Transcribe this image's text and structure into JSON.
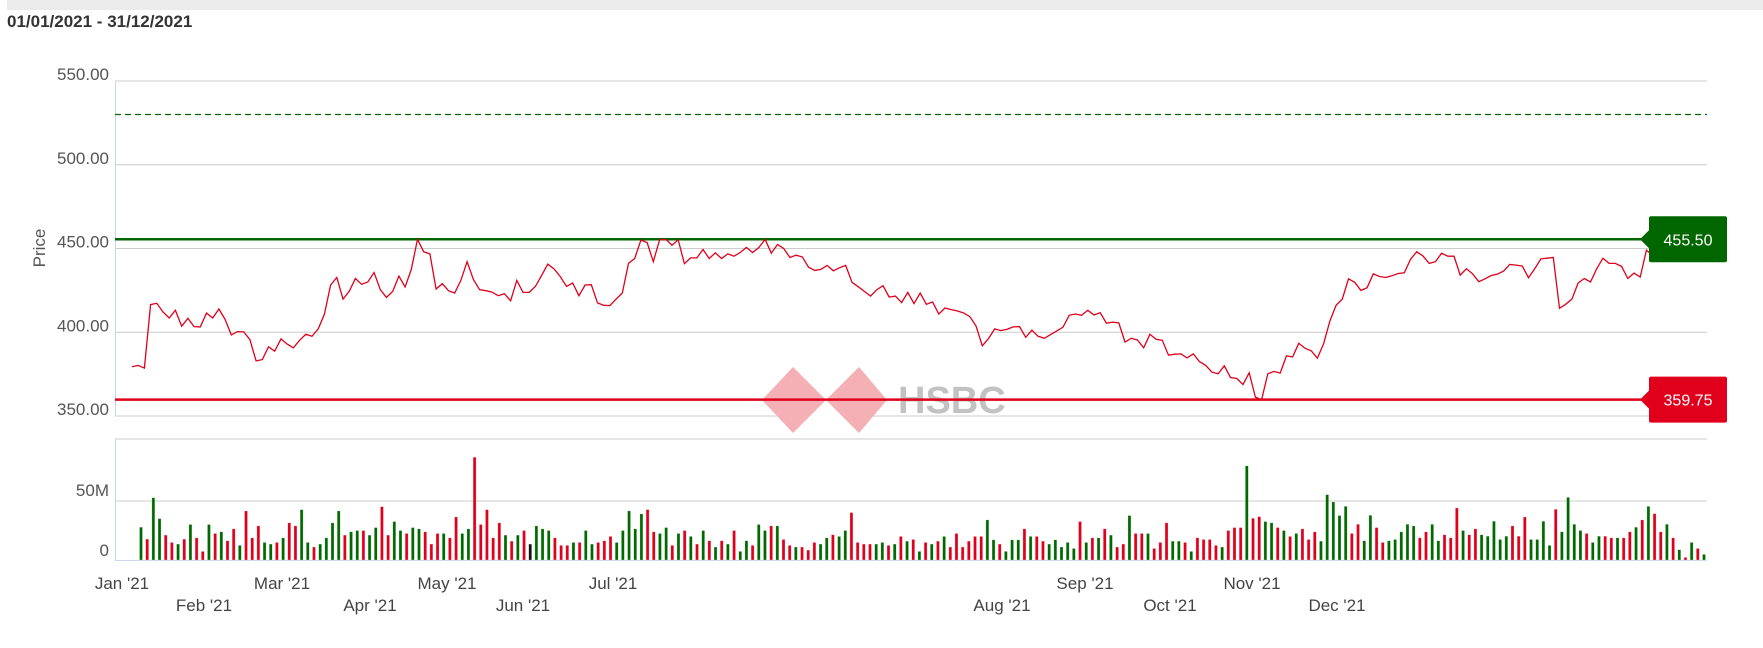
{
  "header": {
    "date_range": "01/01/2021 - 31/12/2021"
  },
  "watermark": {
    "text": "HSBC"
  },
  "colors": {
    "price_line": "#e0001b",
    "up": "#006a00",
    "down": "#e0001b",
    "flat": "#111111",
    "high_line": "#006600",
    "low_line": "#e0001b",
    "grid": "#cccccc"
  },
  "chart_data": {
    "type": "line",
    "title": "",
    "ylabel": "Price",
    "ylim": [
      350,
      550
    ],
    "y_ticks": [
      "550.00",
      "500.00",
      "450.00",
      "400.00",
      "350.00"
    ],
    "x_ticks": [
      "Jan '21",
      "Feb '21",
      "Mar '21",
      "Apr '21",
      "May '21",
      "Jun '21",
      "Jul '21",
      "Aug '21",
      "Sep '21",
      "Oct '21",
      "Nov '21",
      "Dec '21"
    ],
    "x_range": [
      "01/01/2021",
      "31/12/2021"
    ],
    "grid": true,
    "reference_lines": [
      {
        "label": "455.50",
        "value": 455.5,
        "style": "solid",
        "color": "#006600"
      },
      {
        "label": "359.75",
        "value": 359.75,
        "style": "solid",
        "color": "#e0001b"
      },
      {
        "value": 530,
        "style": "dashed",
        "color": "#006600"
      }
    ],
    "price": [
      379.4,
      380.2,
      378.6,
      416.5,
      417.3,
      412.1,
      408.5,
      413.1,
      403.6,
      408.3,
      403.4,
      403.2,
      411.5,
      408.5,
      413.9,
      407.7,
      398.4,
      400.4,
      400.2,
      395.6,
      382.9,
      383.7,
      391.3,
      388.7,
      396.0,
      392.9,
      390.7,
      395.2,
      398.8,
      397.6,
      402.0,
      410.7,
      428.2,
      432.7,
      419.8,
      424.4,
      432.1,
      428.6,
      430.0,
      435.7,
      425.4,
      420.8,
      424.4,
      433.5,
      427.0,
      437.5,
      455.5,
      448.0,
      446.8,
      425.8,
      429.0,
      424.8,
      423.4,
      431.0,
      442.1,
      431.5,
      425.4,
      424.8,
      424.0,
      421.8,
      423.0,
      418.8,
      431.0,
      423.8,
      423.8,
      427.4,
      433.9,
      440.7,
      437.9,
      433.3,
      427.4,
      429.4,
      421.8,
      428.2,
      428.4,
      417.5,
      416.1,
      415.9,
      419.8,
      423.4,
      441.1,
      444.0,
      455.0,
      453.6,
      442.1,
      455.2,
      455.5,
      452.0,
      455.2,
      440.9,
      444.4,
      444.4,
      449.4,
      444.0,
      447.4,
      444.0,
      446.8,
      445.4,
      447.6,
      450.6,
      447.6,
      450.6,
      455.5,
      447.2,
      452.4,
      450.0,
      444.6,
      446.0,
      445.0,
      438.9,
      436.9,
      437.5,
      439.9,
      436.7,
      438.5,
      439.9,
      429.8,
      427.2,
      424.4,
      421.6,
      425.4,
      427.8,
      421.0,
      421.6,
      417.7,
      423.8,
      417.1,
      423.4,
      416.7,
      418.1,
      410.9,
      414.5,
      413.5,
      412.7,
      411.5,
      409.3,
      403.6,
      391.9,
      396.2,
      402.0,
      401.0,
      401.8,
      403.2,
      403.4,
      397.0,
      401.2,
      397.6,
      396.4,
      398.6,
      400.8,
      403.0,
      410.1,
      410.9,
      410.1,
      413.1,
      410.3,
      411.7,
      405.4,
      406.0,
      405.6,
      394.2,
      396.4,
      395.4,
      390.7,
      398.8,
      395.8,
      395.2,
      386.3,
      386.9,
      387.1,
      384.7,
      387.1,
      382.5,
      380.2,
      376.2,
      375.2,
      380.0,
      373.0,
      372.4,
      368.8,
      375.8,
      361.3,
      359.75,
      375.2,
      376.6,
      375.6,
      385.9,
      385.3,
      393.4,
      390.5,
      388.9,
      384.5,
      393.1,
      406.7,
      416.1,
      419.8,
      431.9,
      429.8,
      425.0,
      426.6,
      434.9,
      433.3,
      432.7,
      433.7,
      435.1,
      435.5,
      443.5,
      448.0,
      445.6,
      441.1,
      442.1,
      447.2,
      445.4,
      445.4,
      434.1,
      437.9,
      434.9,
      430.2,
      431.9,
      433.9,
      434.7,
      436.5,
      440.5,
      440.1,
      439.5,
      432.5,
      437.9,
      443.8,
      444.2,
      444.6,
      414.3,
      416.7,
      419.8,
      429.4,
      432.1,
      430.0,
      437.9,
      444.2,
      441.1,
      441.1,
      439.3,
      432.1,
      435.3,
      432.9,
      449.0,
      446.0,
      442.7,
      444.8
    ],
    "volume_unit": "M",
    "volume_ylim": [
      0,
      100
    ],
    "volume_ticks": [
      "50M",
      "0"
    ],
    "volume": [
      27.8,
      17.7,
      52.8,
      35.1,
      21.1,
      14.9,
      13.5,
      17.7,
      30.1,
      18.8,
      7.3,
      30.1,
      22.5,
      23.9,
      16.3,
      26.4,
      12.4,
      41.6,
      18.8,
      28.9,
      14.9,
      13.5,
      14.9,
      18.8,
      31.5,
      28.9,
      42.7,
      14.9,
      11.0,
      13.5,
      18.8,
      31.5,
      41.6,
      21.1,
      23.9,
      25.0,
      25.0,
      21.1,
      27.5,
      45.2,
      21.1,
      32.6,
      25.0,
      22.5,
      27.5,
      26.4,
      23.9,
      13.5,
      22.5,
      22.5,
      18.8,
      36.5,
      22.5,
      26.4,
      87.1,
      30.1,
      42.7,
      18.8,
      31.5,
      21.1,
      16.0,
      21.1,
      25.0,
      13.5,
      28.9,
      26.4,
      25.0,
      18.8,
      12.4,
      12.4,
      14.9,
      14.9,
      25.0,
      13.5,
      14.9,
      16.3,
      20.0,
      14.9,
      25.0,
      41.6,
      26.4,
      39.1,
      42.7,
      23.9,
      22.5,
      27.5,
      12.4,
      22.5,
      25.0,
      20.0,
      13.5,
      25.0,
      16.3,
      11.0,
      16.3,
      13.5,
      25.0,
      7.3,
      16.3,
      12.4,
      30.1,
      25.0,
      28.9,
      28.9,
      17.4,
      12.4,
      11.0,
      11.0,
      8.4,
      14.9,
      13.5,
      18.8,
      21.4,
      20.0,
      25.0,
      40.2,
      14.9,
      13.5,
      13.5,
      13.5,
      14.9,
      12.4,
      13.5,
      20.0,
      16.0,
      17.4,
      7.3,
      14.9,
      13.5,
      16.0,
      20.0,
      11.0,
      22.5,
      11.0,
      16.0,
      20.0,
      20.0,
      34.0,
      17.1,
      13.5,
      7.3,
      17.1,
      17.1,
      26.4,
      20.0,
      20.0,
      16.0,
      13.5,
      17.1,
      11.0,
      14.9,
      9.8,
      32.6,
      14.9,
      18.8,
      18.8,
      26.4,
      21.1,
      11.0,
      13.5,
      37.7,
      22.5,
      22.5,
      22.5,
      9.8,
      14.9,
      31.5,
      16.0,
      16.0,
      14.9,
      7.3,
      18.8,
      17.4,
      17.4,
      12.4,
      11.0,
      25.0,
      27.5,
      27.5,
      79.8,
      35.4,
      36.8,
      32.6,
      31.5,
      27.5,
      25.0,
      20.0,
      22.5,
      26.4,
      17.4,
      23.9,
      16.0,
      55.4,
      49.2,
      37.7,
      45.5,
      22.5,
      30.3,
      16.3,
      37.9,
      27.5,
      14.9,
      16.3,
      17.4,
      23.9,
      30.3,
      28.9,
      18.8,
      23.9,
      30.3,
      16.3,
      21.4,
      18.8,
      44.1,
      25.0,
      21.4,
      26.4,
      21.4,
      20.2,
      32.9,
      17.4,
      20.2,
      28.9,
      20.2,
      36.5,
      17.4,
      17.4,
      32.9,
      12.4,
      43.0,
      23.9,
      53.1,
      30.3,
      25.0,
      22.5,
      14.9,
      20.2,
      20.2,
      18.8,
      18.8,
      18.8,
      23.9,
      27.8,
      34.0,
      45.5,
      39.3,
      23.9,
      30.3,
      18.8,
      8.7,
      2.2,
      14.9,
      9.8,
      4.8
    ],
    "volume_direction": [
      "up",
      "down",
      "up",
      "up",
      "down",
      "down",
      "up",
      "down",
      "up",
      "down",
      "down",
      "up",
      "down",
      "up",
      "down",
      "down",
      "up",
      "down",
      "down",
      "down",
      "up",
      "up",
      "down",
      "up",
      "down",
      "down",
      "up",
      "up",
      "down",
      "up",
      "up",
      "up",
      "up",
      "down",
      "up",
      "up",
      "down",
      "up",
      "up",
      "down",
      "down",
      "up",
      "up",
      "down",
      "up",
      "up",
      "down",
      "down",
      "down",
      "up",
      "down",
      "down",
      "up",
      "up",
      "down",
      "down",
      "down",
      "down",
      "down",
      "up",
      "down",
      "up",
      "down",
      "flat",
      "up",
      "up",
      "up",
      "down",
      "down",
      "down",
      "up",
      "down",
      "up",
      "up",
      "down",
      "down",
      "down",
      "up",
      "up",
      "up",
      "up",
      "up",
      "down",
      "down",
      "up",
      "up",
      "down",
      "up",
      "down",
      "up",
      "down",
      "up",
      "down",
      "up",
      "down",
      "up",
      "down",
      "up",
      "up",
      "down",
      "up",
      "up",
      "down",
      "up",
      "down",
      "down",
      "up",
      "down",
      "down",
      "down",
      "up",
      "up",
      "down",
      "up",
      "up",
      "down",
      "down",
      "down",
      "down",
      "up",
      "up",
      "down",
      "up",
      "down",
      "up",
      "down",
      "up",
      "down",
      "up",
      "down",
      "up",
      "down",
      "down",
      "down",
      "down",
      "down",
      "down",
      "up",
      "up",
      "down",
      "up",
      "up",
      "up",
      "down",
      "up",
      "down",
      "down",
      "up",
      "up",
      "up",
      "up",
      "up",
      "down",
      "up",
      "down",
      "up",
      "down",
      "up",
      "down",
      "down",
      "up",
      "down",
      "down",
      "up",
      "down",
      "down",
      "down",
      "up",
      "up",
      "down",
      "up",
      "down",
      "down",
      "down",
      "down",
      "up",
      "down",
      "down",
      "down",
      "up",
      "down",
      "down",
      "up",
      "up",
      "down",
      "up",
      "down",
      "up",
      "down",
      "down",
      "down",
      "up",
      "up",
      "up",
      "up",
      "up",
      "down",
      "down",
      "up",
      "up",
      "down",
      "down",
      "up",
      "up",
      "up",
      "up",
      "up",
      "down",
      "down",
      "up",
      "up",
      "down",
      "down",
      "down",
      "up",
      "down",
      "down",
      "up",
      "up",
      "up",
      "up",
      "up",
      "down",
      "down",
      "down",
      "up",
      "up",
      "up",
      "up",
      "down",
      "up",
      "up",
      "up",
      "up",
      "down",
      "up",
      "up",
      "down",
      "down",
      "up",
      "down",
      "down",
      "up",
      "down",
      "up",
      "down",
      "down",
      "up",
      "down",
      "up",
      "down",
      "up",
      "down",
      "up"
    ]
  }
}
